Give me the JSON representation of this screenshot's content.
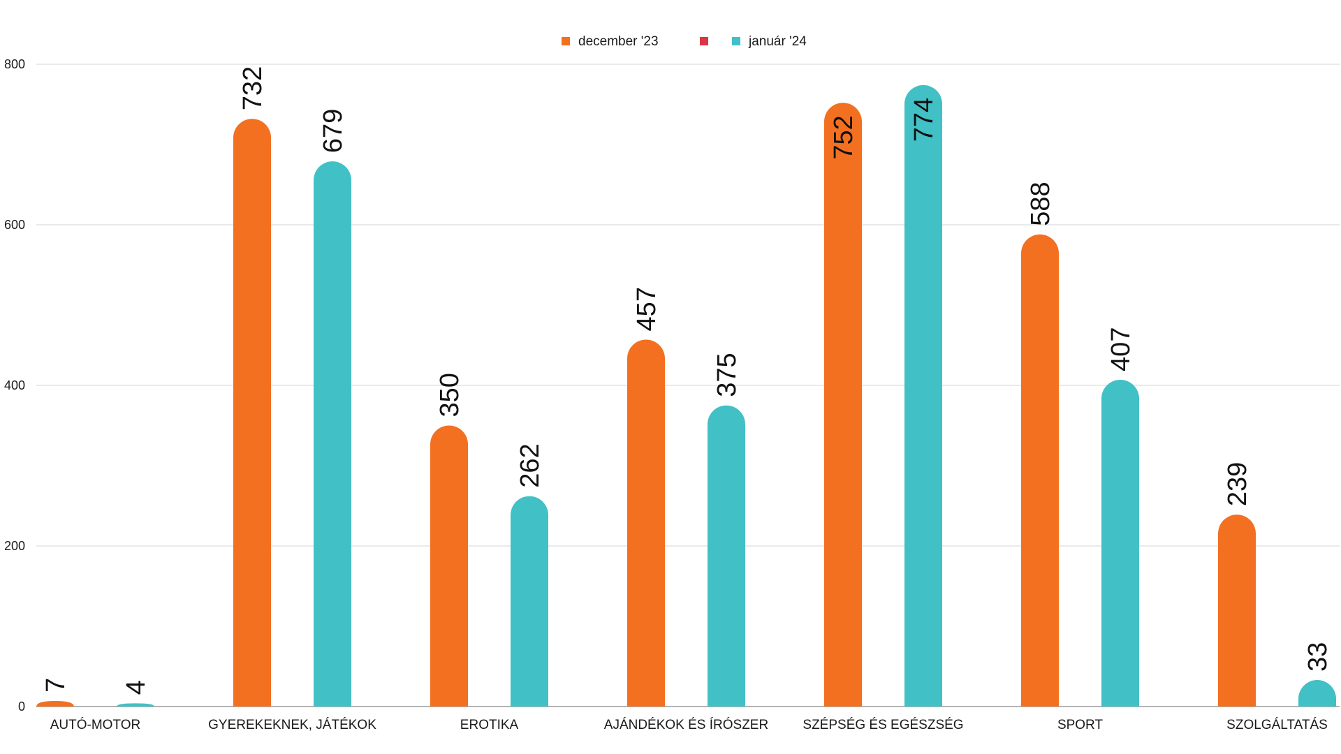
{
  "chart_data": {
    "type": "bar",
    "title": "",
    "xlabel": "",
    "ylabel": "",
    "ylim": [
      0,
      800
    ],
    "yticks": [
      0,
      200,
      400,
      600,
      800
    ],
    "grid": true,
    "legend_position": "top-center",
    "categories": [
      "AUTÓ-MOTOR",
      "GYEREKEKNEK, JÁTÉKOK",
      "EROTIKA",
      "AJÁNDÉKOK ÉS ÍRÓSZER",
      "SZÉPSÉG ÉS EGÉSZSÉG",
      "SPORT",
      "SZOLGÁLTATÁS"
    ],
    "series": [
      {
        "name": "december '23",
        "color": "#F37021",
        "values": [
          7,
          732,
          350,
          457,
          752,
          588,
          239
        ]
      },
      {
        "name": "január '24",
        "color": "#41C0C5",
        "values": [
          4,
          679,
          262,
          375,
          774,
          407,
          33
        ]
      }
    ],
    "legend": [
      {
        "name": "december '23",
        "color": "#F37021"
      },
      {
        "name": "",
        "color": "#DC3545"
      },
      {
        "name": "január '24",
        "color": "#41C0C5"
      }
    ],
    "label_inside_threshold": 740
  }
}
